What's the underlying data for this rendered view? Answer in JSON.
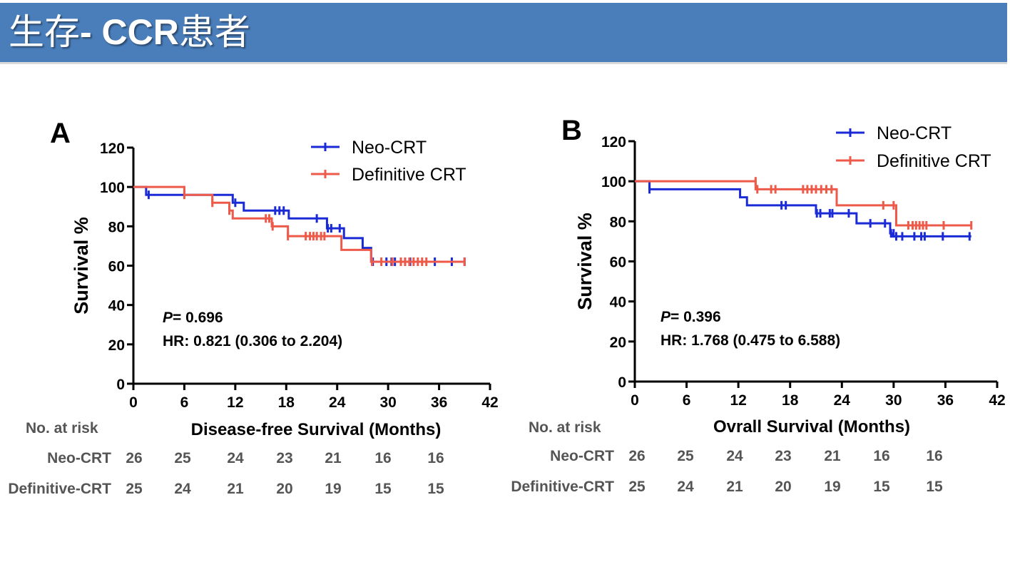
{
  "header": {
    "title_cn_1": "生存",
    "title_sep": "- ",
    "title_en": "CCR",
    "title_cn_2": "患者"
  },
  "colors": {
    "neo": "#1a2bd6",
    "def": "#ee5a4a",
    "axis": "#000000",
    "header_bg": "#4a7ebb"
  },
  "chart_data": [
    {
      "panel": "A",
      "type": "line",
      "subtype": "kaplan-meier-step",
      "xlabel": "Disease-free Survival (Months)",
      "ylabel": "Survival %",
      "xlim": [
        0,
        42
      ],
      "ylim": [
        0,
        120
      ],
      "xticks": [
        0,
        6,
        12,
        18,
        24,
        30,
        36,
        42
      ],
      "yticks": [
        0,
        20,
        40,
        60,
        80,
        100,
        120
      ],
      "legend": [
        "Neo-CRT",
        "Definitive CRT"
      ],
      "legend_position": "top-right",
      "stats": {
        "p_label": "P",
        "p_value": "= 0.696",
        "hr": "HR: 0.821 (0.306 to 2.204)"
      },
      "series": [
        {
          "name": "Neo-CRT",
          "color": "#1a2bd6",
          "steps": [
            [
              0,
              100
            ],
            [
              1.5,
              96
            ],
            [
              11.7,
              92
            ],
            [
              13,
              88
            ],
            [
              18.3,
              84
            ],
            [
              22.8,
              79
            ],
            [
              24.8,
              74
            ],
            [
              27,
              69
            ],
            [
              28,
              62
            ]
          ],
          "end": 39,
          "censors": [
            [
              1.8,
              96
            ],
            [
              12,
              92
            ],
            [
              16.7,
              88
            ],
            [
              17.2,
              88
            ],
            [
              17.7,
              88
            ],
            [
              21.6,
              84
            ],
            [
              22.9,
              79
            ],
            [
              23.3,
              79
            ],
            [
              24.3,
              79
            ],
            [
              28.2,
              62
            ],
            [
              29.8,
              62
            ],
            [
              30.4,
              62
            ],
            [
              30.8,
              62
            ],
            [
              32,
              62
            ],
            [
              32.6,
              62
            ],
            [
              35.5,
              62
            ],
            [
              37.5,
              62
            ],
            [
              39,
              62
            ]
          ]
        },
        {
          "name": "Definitive CRT",
          "color": "#ee5a4a",
          "steps": [
            [
              0,
              100
            ],
            [
              6,
              96
            ],
            [
              9.3,
              92
            ],
            [
              11.3,
              88
            ],
            [
              11.7,
              84
            ],
            [
              16.3,
              80
            ],
            [
              18.2,
              75
            ],
            [
              24.5,
              68
            ],
            [
              28,
              62
            ]
          ],
          "end": 39,
          "censors": [
            [
              6,
              96
            ],
            [
              9.3,
              92
            ],
            [
              11.3,
              88
            ],
            [
              15.6,
              84
            ],
            [
              16,
              84
            ],
            [
              16.4,
              80
            ],
            [
              18.2,
              75
            ],
            [
              20.3,
              75
            ],
            [
              20.8,
              75
            ],
            [
              21.2,
              75
            ],
            [
              21.6,
              75
            ],
            [
              22.1,
              75
            ],
            [
              22.5,
              75
            ],
            [
              28.1,
              62
            ],
            [
              29.2,
              62
            ],
            [
              30.5,
              62
            ],
            [
              31.5,
              62
            ],
            [
              32,
              62
            ],
            [
              32.5,
              62
            ],
            [
              33,
              62
            ],
            [
              33.5,
              62
            ],
            [
              34,
              62
            ],
            [
              34.5,
              62
            ],
            [
              39,
              62
            ]
          ]
        }
      ],
      "risk_table": {
        "title": "No. at risk",
        "rows": [
          {
            "label": "Neo-CRT",
            "values": [
              "26",
              "25",
              "24",
              "23",
              "21",
              "16",
              "16"
            ]
          },
          {
            "label": "Definitive-CRT",
            "values": [
              "25",
              "24",
              "21",
              "20",
              "19",
              "15",
              "15"
            ]
          }
        ]
      }
    },
    {
      "panel": "B",
      "type": "line",
      "subtype": "kaplan-meier-step",
      "xlabel": "Ovrall Survival (Months)",
      "ylabel": "Survival %",
      "xlim": [
        0,
        42
      ],
      "ylim": [
        0,
        120
      ],
      "xticks": [
        0,
        6,
        12,
        18,
        24,
        30,
        36,
        42
      ],
      "yticks": [
        0,
        20,
        40,
        60,
        80,
        100,
        120
      ],
      "legend": [
        "Neo-CRT",
        "Definitive CRT"
      ],
      "legend_position": "top-right",
      "stats": {
        "p_label": "P",
        "p_value": "= 0.396",
        "hr": "HR: 1.768 (0.475 to 6.588)"
      },
      "series": [
        {
          "name": "Neo-CRT",
          "color": "#1a2bd6",
          "steps": [
            [
              0,
              100
            ],
            [
              1.7,
              96
            ],
            [
              12.2,
              92
            ],
            [
              13,
              88
            ],
            [
              21,
              84
            ],
            [
              25.7,
              79
            ],
            [
              29.6,
              74
            ],
            [
              29.8,
              72.5
            ]
          ],
          "end": 39,
          "censors": [
            [
              1.7,
              96
            ],
            [
              17,
              88
            ],
            [
              17.5,
              88
            ],
            [
              21.1,
              84
            ],
            [
              21.5,
              84
            ],
            [
              22.6,
              84
            ],
            [
              22.9,
              84
            ],
            [
              24.8,
              84
            ],
            [
              27.3,
              79
            ],
            [
              29,
              79
            ],
            [
              29.7,
              74
            ],
            [
              30,
              74
            ],
            [
              30.3,
              72.5
            ],
            [
              31,
              72.5
            ],
            [
              32.4,
              72.5
            ],
            [
              33.2,
              72.5
            ],
            [
              33.6,
              72.5
            ],
            [
              35.7,
              72.5
            ],
            [
              38.8,
              72.5
            ]
          ]
        },
        {
          "name": "Definitive CRT",
          "color": "#ee5a4a",
          "steps": [
            [
              0,
              100
            ],
            [
              14,
              96
            ],
            [
              23.4,
              88
            ],
            [
              30.3,
              78
            ]
          ],
          "end": 39,
          "censors": [
            [
              14,
              100
            ],
            [
              14.2,
              96
            ],
            [
              15.8,
              96
            ],
            [
              16.3,
              96
            ],
            [
              19.5,
              96
            ],
            [
              20,
              96
            ],
            [
              20.5,
              96
            ],
            [
              21,
              96
            ],
            [
              21.6,
              96
            ],
            [
              22.2,
              96
            ],
            [
              22.8,
              96
            ],
            [
              28.8,
              88
            ],
            [
              30,
              88
            ],
            [
              31.7,
              78
            ],
            [
              32.2,
              78
            ],
            [
              32.6,
              78
            ],
            [
              33,
              78
            ],
            [
              33.4,
              78
            ],
            [
              33.8,
              78
            ],
            [
              35.8,
              78
            ],
            [
              39,
              78
            ]
          ]
        }
      ],
      "risk_table": {
        "title": "No. at risk",
        "rows": [
          {
            "label": "Neo-CRT",
            "values": [
              "26",
              "25",
              "24",
              "23",
              "21",
              "16",
              "16"
            ]
          },
          {
            "label": "Definitive-CRT",
            "values": [
              "25",
              "24",
              "21",
              "20",
              "19",
              "15",
              "15"
            ]
          }
        ]
      }
    }
  ]
}
